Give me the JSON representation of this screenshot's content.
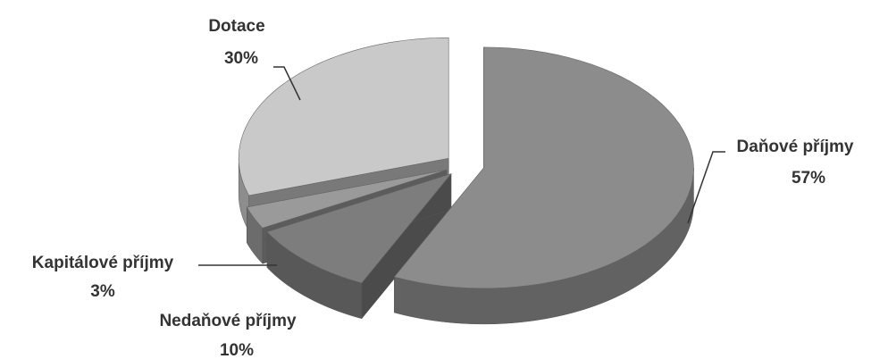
{
  "chart_data": {
    "type": "pie3d",
    "categories": [
      "Daňové příjmy",
      "Nedaňové příjmy",
      "Kapitálové příjmy",
      "Dotace"
    ],
    "values": [
      57,
      10,
      3,
      30
    ],
    "value_labels": [
      "57%",
      "10%",
      "3%",
      "30%"
    ],
    "colors": [
      "#8c8c8c",
      "#7d7d7d",
      "#9a9a9a",
      "#c9c9c9"
    ]
  }
}
